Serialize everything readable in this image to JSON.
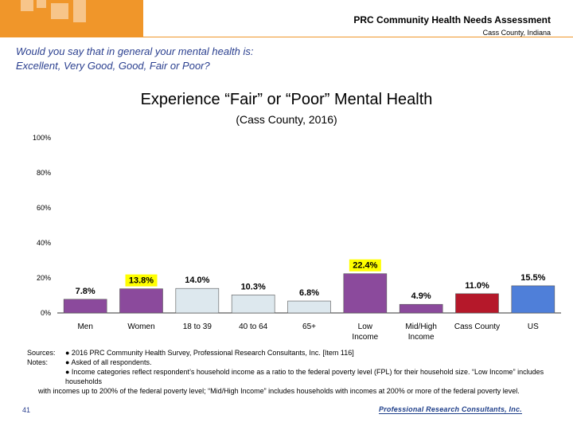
{
  "header": {
    "title": "PRC Community Health Needs Assessment",
    "subtitle": "Cass County, Indiana"
  },
  "question": {
    "line1": "Would you say that in general your mental health is:",
    "line2": "Excellent, Very Good, Good, Fair or Poor?"
  },
  "chart_data": {
    "type": "bar",
    "title": "Experience “Fair” or “Poor” Mental Health",
    "subtitle": "(Cass County, 2016)",
    "categories": [
      [
        "Men"
      ],
      [
        "Women"
      ],
      [
        "18 to 39"
      ],
      [
        "40 to 64"
      ],
      [
        "65+"
      ],
      [
        "Low",
        "Income"
      ],
      [
        "Mid/High",
        "Income"
      ],
      [
        "Cass County"
      ],
      [
        "US"
      ]
    ],
    "values": [
      7.8,
      13.8,
      14.0,
      10.3,
      6.8,
      22.4,
      4.9,
      11.0,
      15.5
    ],
    "labels": [
      "7.8%",
      "13.8%",
      "14.0%",
      "10.3%",
      "6.8%",
      "22.4%",
      "4.9%",
      "11.0%",
      "15.5%"
    ],
    "colors": [
      "#8b4a9c",
      "#8b4a9c",
      "#dde8ee",
      "#dde8ee",
      "#dde8ee",
      "#8b4a9c",
      "#8b4a9c",
      "#b5182a",
      "#4f7fd9"
    ],
    "highlighted": [
      false,
      true,
      false,
      false,
      false,
      true,
      false,
      false,
      false
    ],
    "highlight_color": "#ffff00",
    "ylim": [
      0,
      100
    ],
    "yticks": [
      0,
      20,
      40,
      60,
      80,
      100
    ],
    "ytick_labels": [
      "0%",
      "20%",
      "40%",
      "60%",
      "80%",
      "100%"
    ],
    "grid": false
  },
  "notes": {
    "sources_label": "Sources:",
    "notes_label": "Notes:",
    "source_text": "●      2016 PRC Community Health Survey, Professional Research Consultants, Inc. [Item 116]",
    "note1": "●      Asked of all respondents.",
    "note2": "●      Income categories reflect respondent’s household income as a ratio to the federal poverty level (FPL) for their household size. “Low Income” includes households",
    "note3": "with incomes up to 200% of the federal poverty level; “Mid/High Income” includes households with incomes at 200% or more of the federal poverty level."
  },
  "page_number": "41",
  "footer_logo": "Professional Research Consultants, Inc."
}
